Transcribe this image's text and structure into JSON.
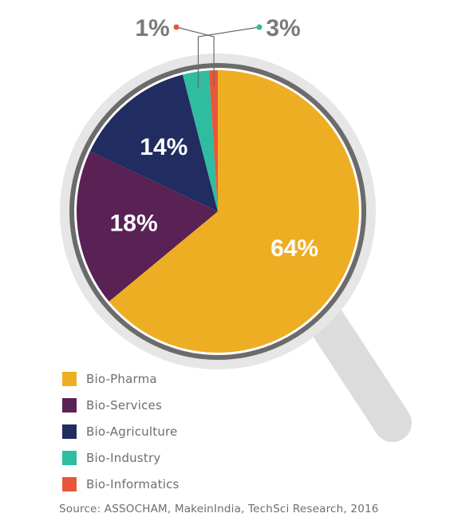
{
  "chart_data": {
    "type": "pie",
    "categories": [
      "Bio-Pharma",
      "Bio-Services",
      "Bio-Agriculture",
      "Bio-Industry",
      "Bio-Informatics"
    ],
    "values": [
      64,
      18,
      14,
      3,
      1
    ],
    "labels": [
      "64%",
      "18%",
      "14%",
      "3%",
      "1%"
    ],
    "colors": [
      "#edae24",
      "#5a2155",
      "#212c60",
      "#2ebda0",
      "#e8573b"
    ],
    "legend": "bottom-left",
    "source": "Source: ASSOCHAM, MakeinIndia, TechSci Research, 2016"
  },
  "decoration": {
    "magnifier_handle": "#dcdcdc",
    "magnifier_ring": "#e6e6e6",
    "magnifier_rim": "#6b6b6b",
    "label_color_inside": "#ffffff",
    "label_color_outside": "#7a7a7a"
  }
}
